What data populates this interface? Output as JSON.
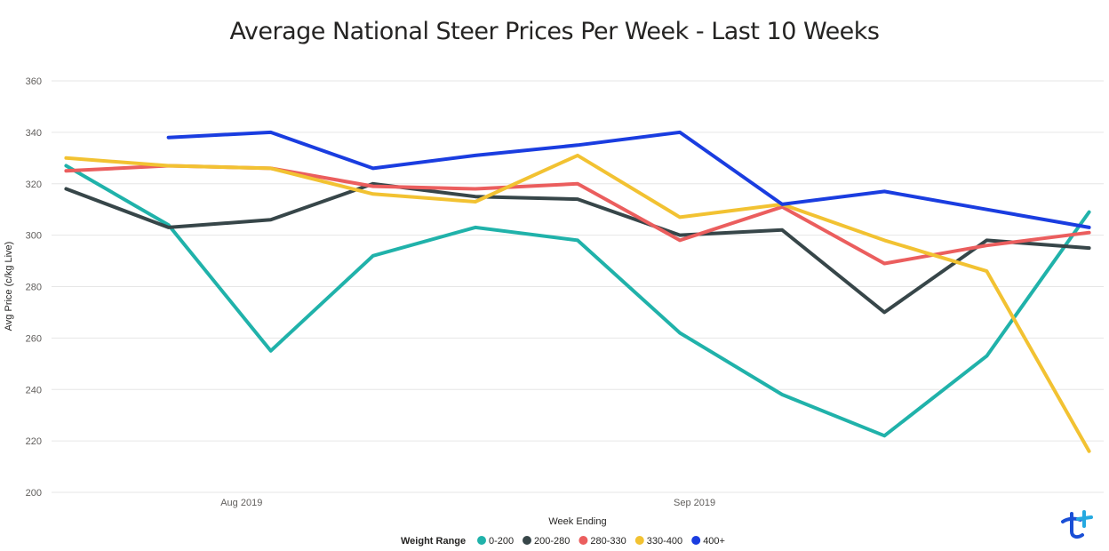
{
  "chart_data": {
    "type": "line",
    "title": "Average National Steer Prices Per Week - Last 10 Weeks",
    "xlabel": "Week Ending",
    "ylabel": "Avg Price (c/kg Live)",
    "ylim": [
      200,
      360
    ],
    "yticks": [
      200,
      220,
      240,
      260,
      280,
      300,
      320,
      340,
      360
    ],
    "x": [
      "2019-07-20",
      "2019-07-27",
      "2019-08-03",
      "2019-08-10",
      "2019-08-17",
      "2019-08-24",
      "2019-08-31",
      "2019-09-07",
      "2019-09-14",
      "2019-09-21",
      "2019-09-28"
    ],
    "xlim": [
      "2019-07-19",
      "2019-09-29"
    ],
    "xticks": [
      {
        "label": "Aug 2019",
        "date": "2019-08-01"
      },
      {
        "label": "Sep 2019",
        "date": "2019-09-01"
      }
    ],
    "grid": true,
    "legend": {
      "title": "Weight Range",
      "placement": "bottom"
    },
    "series": [
      {
        "name": "0-200",
        "color": "#20b2aa",
        "values": [
          327,
          304,
          255,
          292,
          303,
          298,
          262,
          238,
          222,
          253,
          309
        ]
      },
      {
        "name": "200-280",
        "color": "#374649",
        "values": [
          318,
          303,
          306,
          320,
          315,
          314,
          300,
          302,
          270,
          298,
          295
        ]
      },
      {
        "name": "280-330",
        "color": "#eb5e5e",
        "values": [
          325,
          327,
          326,
          319,
          318,
          320,
          298,
          311,
          289,
          296,
          301
        ]
      },
      {
        "name": "330-400",
        "color": "#f2c232",
        "values": [
          330,
          327,
          326,
          316,
          313,
          331,
          307,
          312,
          298,
          286,
          216
        ]
      },
      {
        "name": "400+",
        "color": "#1a3de0",
        "values": [
          null,
          338,
          340,
          326,
          331,
          335,
          340,
          312,
          317,
          310,
          303
        ]
      }
    ]
  },
  "logo": {
    "icon": "brand-logo-icon",
    "colors": [
      "#1a4fd6",
      "#25a9e0"
    ]
  }
}
